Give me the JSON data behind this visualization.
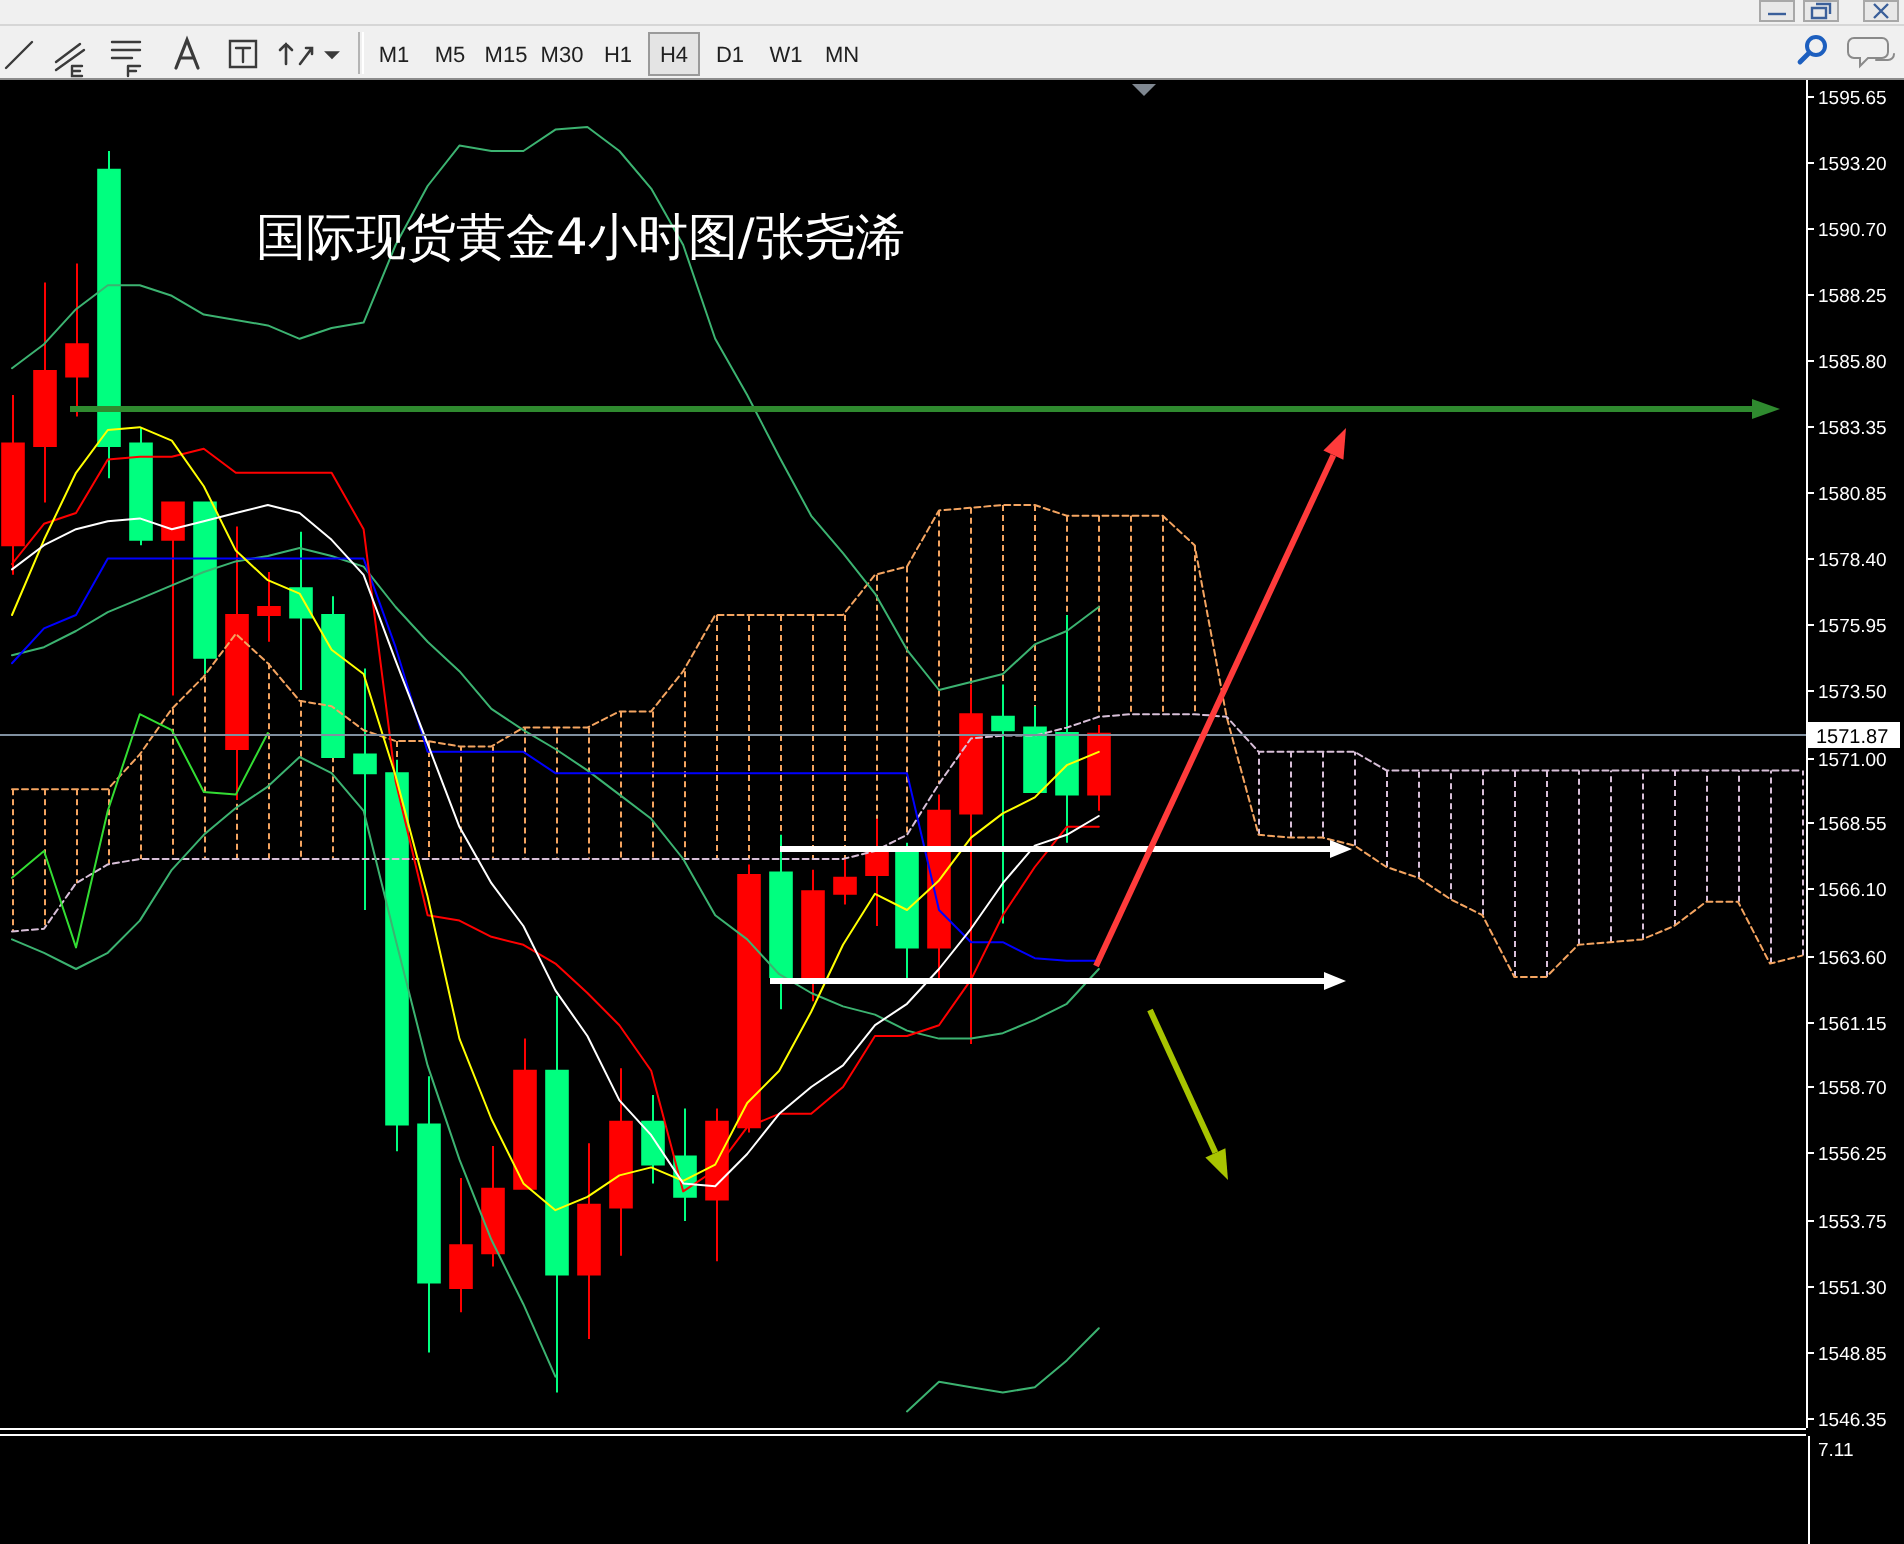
{
  "chart_data": [
    {
      "type": "candlestick",
      "title": "国际现货黄金4小时图/张尧浠",
      "categories": [
        null,
        null,
        null,
        null,
        null,
        null,
        null,
        null,
        null,
        null,
        null,
        null,
        null,
        null,
        null,
        null,
        null,
        null,
        null,
        null,
        null,
        null,
        null,
        null,
        null,
        null,
        null,
        null,
        null,
        null,
        null,
        null,
        null,
        null,
        null,
        null,
        null,
        null,
        null,
        null,
        null,
        null,
        null,
        null,
        null,
        null,
        null,
        null,
        null,
        null,
        null,
        null,
        null,
        null,
        null,
        null,
        null
      ],
      "ohlc": [
        [
          1578.9,
          1584.5,
          1577.8,
          1582.7
        ],
        [
          1582.6,
          1588.7,
          1580.5,
          1585.4
        ],
        [
          1585.2,
          1589.4,
          1583.7,
          1586.4
        ],
        [
          1592.9,
          1593.6,
          1581.4,
          1582.6
        ],
        [
          1582.7,
          1583.3,
          1578.9,
          1579.1
        ],
        [
          1579.1,
          1580.5,
          1573.3,
          1580.5
        ],
        [
          1580.5,
          1580.5,
          1574.1,
          1574.7
        ],
        [
          1571.3,
          1579.6,
          1569.4,
          1576.3
        ],
        [
          1576.3,
          1577.9,
          1575.3,
          1576.6
        ],
        [
          1577.3,
          1579.4,
          1573.5,
          1576.2
        ],
        [
          1576.3,
          1577.0,
          1571.0,
          1571.0
        ],
        [
          1571.1,
          1574.3,
          1565.3,
          1570.4
        ],
        [
          1570.4,
          1570.9,
          1556.3,
          1557.3
        ],
        [
          1557.3,
          1559.1,
          1548.8,
          1551.4
        ],
        [
          1551.2,
          1555.3,
          1550.3,
          1552.8
        ],
        [
          1552.5,
          1556.5,
          1552.0,
          1554.9
        ],
        [
          1554.9,
          1560.5,
          1554.9,
          1559.3
        ],
        [
          1559.3,
          1562.1,
          1547.3,
          1551.7
        ],
        [
          1551.7,
          1556.6,
          1549.3,
          1554.3
        ],
        [
          1554.2,
          1559.4,
          1552.4,
          1557.4
        ],
        [
          1557.4,
          1558.4,
          1555.1,
          1555.8
        ],
        [
          1556.1,
          1557.9,
          1553.7,
          1554.6
        ],
        [
          1554.5,
          1557.9,
          1552.2,
          1557.4
        ],
        [
          1557.2,
          1567.0,
          1557.0,
          1566.6
        ],
        [
          1566.7,
          1568.1,
          1561.6,
          1562.8
        ],
        [
          1562.7,
          1566.8,
          1561.9,
          1566.0
        ],
        [
          1565.9,
          1567.2,
          1565.5,
          1566.5
        ],
        [
          1566.6,
          1568.7,
          1564.7,
          1567.5
        ],
        [
          1567.5,
          1567.8,
          1562.6,
          1563.9
        ],
        [
          1563.9,
          1569.6,
          1562.7,
          1569.0
        ],
        [
          1568.9,
          1573.7,
          1560.3,
          1572.6
        ],
        [
          1572.5,
          1573.7,
          1564.8,
          1572.0
        ],
        [
          1572.1,
          1572.9,
          1569.7,
          1569.7
        ],
        [
          1571.9,
          1576.3,
          1567.8,
          1569.6
        ],
        [
          1569.6,
          1572.2,
          1569.0,
          1571.87
        ],
        null,
        null,
        null,
        null,
        null,
        null,
        null,
        null,
        null,
        null,
        null,
        null,
        null,
        null,
        null,
        null,
        null,
        null,
        null,
        null,
        null,
        null
      ],
      "colors": [
        "#ff0000",
        "#ff0000",
        "#ff0000",
        "#00ff7f",
        "#00ff7f",
        "#ff0000",
        "#00ff7f",
        "#ff0000",
        "#ff0000",
        "#00ff7f",
        "#00ff7f",
        "#00ff7f",
        "#00ff7f",
        "#00ff7f",
        "#ff0000",
        "#ff0000",
        "#ff0000",
        "#00ff7f",
        "#ff0000",
        "#ff0000",
        "#00ff7f",
        "#00ff7f",
        "#ff0000",
        "#ff0000",
        "#00ff7f",
        "#ff0000",
        "#ff0000",
        "#ff0000",
        "#00ff7f",
        "#ff0000",
        "#ff0000",
        "#00ff7f",
        "#00ff7f",
        "#00ff7f",
        "#ff0000",
        null,
        null,
        null,
        null,
        null,
        null,
        null,
        null,
        null,
        null,
        null,
        null,
        null,
        null,
        null,
        null,
        null,
        null,
        null,
        null,
        null,
        null
      ],
      "series": [
        {
          "type": "line",
          "color": "#f4a460",
          "line_style": "dashed",
          "values": [
            1569.8,
            1569.8,
            1569.8,
            1569.8,
            1571.1,
            1572.8,
            1574.0,
            1575.6,
            1574.5,
            1573.1,
            1572.9,
            1572.0,
            1571.6,
            1571.6,
            1571.4,
            1571.4,
            1572.1,
            1572.1,
            1572.1,
            1572.7,
            1572.7,
            1574.2,
            1576.3,
            1576.3,
            1576.3,
            1576.3,
            1576.3,
            1577.8,
            1578.1,
            1580.2,
            1580.3,
            1580.4,
            1580.4,
            1580.0,
            1580.0,
            1580.0,
            1580.0,
            1578.9,
            1572.5,
            1568.1,
            1568.0,
            1568.0,
            1567.7,
            1566.9,
            1566.5,
            1565.7,
            1565.1,
            1562.8,
            1562.8,
            1564.0,
            1564.1,
            1564.2,
            1564.7,
            1565.6,
            1565.6,
            1563.3,
            1563.6
          ]
        },
        {
          "type": "line",
          "color": "#d8bfd8",
          "line_style": "dashed",
          "values": [
            1564.5,
            1564.6,
            1566.3,
            1567.0,
            1567.2,
            1567.2,
            1567.2,
            1567.2,
            1567.2,
            1567.2,
            1567.2,
            1567.2,
            1567.2,
            1567.2,
            1567.2,
            1567.2,
            1567.2,
            1567.2,
            1567.2,
            1567.2,
            1567.2,
            1567.2,
            1567.2,
            1567.2,
            1567.2,
            1567.2,
            1567.2,
            1567.5,
            1568.1,
            1570.0,
            1571.7,
            1571.8,
            1571.8,
            1572.1,
            1572.5,
            1572.6,
            1572.6,
            1572.6,
            1572.5,
            1571.2,
            1571.2,
            1571.2,
            1571.2,
            1570.5,
            1570.5,
            1570.5,
            1570.5,
            1570.5,
            1570.5,
            1570.5,
            1570.5,
            1570.5,
            1570.5,
            1570.5,
            1570.5,
            1570.5,
            1570.5
          ]
        },
        {
          "type": "line",
          "color": "#3cb371",
          "values": [
            1585.5,
            1586.4,
            1587.7,
            1588.6,
            1588.6,
            1588.2,
            1587.5,
            1587.3,
            1587.1,
            1586.6,
            1587.0,
            1587.2,
            1590.1,
            1592.3,
            1593.8,
            1593.6,
            1593.6,
            1594.4,
            1594.5,
            1593.6,
            1592.2,
            1590.1,
            1586.6,
            1584.5,
            1582.2,
            1580.0,
            1578.6,
            1577.1,
            1575.0,
            1573.5,
            1573.8,
            1574.1,
            1575.2,
            1575.7,
            1576.6,
            null,
            null,
            null,
            null,
            null,
            null,
            null,
            null,
            null,
            null,
            null,
            null,
            null,
            null,
            null,
            null,
            null,
            null,
            null,
            null,
            null,
            null
          ]
        },
        {
          "type": "line",
          "color": "#3cb371",
          "values": [
            1574.8,
            1575.1,
            1575.7,
            1576.4,
            1576.9,
            1577.4,
            1577.9,
            1578.3,
            1578.5,
            1578.8,
            1578.5,
            1578.1,
            1576.6,
            1575.3,
            1574.2,
            1572.8,
            1572.0,
            1571.3,
            1570.5,
            1569.6,
            1568.7,
            1567.2,
            1565.1,
            1564.2,
            1562.9,
            1562.2,
            1561.7,
            1561.4,
            1560.8,
            1560.5,
            1560.5,
            1560.7,
            1561.2,
            1561.8,
            1563.1,
            null,
            null,
            null,
            null,
            null,
            null,
            null,
            null,
            null,
            null,
            null,
            null,
            null,
            null,
            null,
            null,
            null,
            null,
            null,
            null,
            null,
            null
          ]
        },
        {
          "type": "line",
          "color": "#3cb371",
          "values": [
            1564.2,
            1563.7,
            1563.1,
            1563.7,
            1564.9,
            1566.8,
            1568.1,
            1569.1,
            1569.9,
            1571.0,
            1570.4,
            1569.0,
            1564.2,
            1559.5,
            1556.0,
            1553.0,
            1550.6,
            1547.9,
            null,
            null,
            null,
            null,
            null,
            null,
            null,
            null,
            null,
            null,
            1546.6,
            1547.7,
            1547.5,
            1547.3,
            1547.5,
            1548.5,
            1549.7,
            null,
            null,
            null,
            null,
            null,
            null,
            null,
            null,
            null,
            null,
            null,
            null,
            null,
            null,
            null,
            null,
            null,
            null,
            null,
            null,
            null,
            null
          ]
        },
        {
          "type": "line",
          "color": "#0000ff",
          "values": [
            1574.5,
            1575.8,
            1576.3,
            1578.4,
            1578.4,
            1578.4,
            1578.4,
            1578.4,
            1578.4,
            1578.4,
            1578.4,
            1578.4,
            1575.1,
            1571.2,
            1571.2,
            1571.2,
            1571.2,
            1570.4,
            1570.4,
            1570.4,
            1570.4,
            1570.4,
            1570.4,
            1570.4,
            1570.4,
            1570.4,
            1570.4,
            1570.4,
            1570.4,
            1565.3,
            1564.1,
            1564.1,
            1563.5,
            1563.4,
            1563.4,
            null,
            null,
            null,
            null,
            null,
            null,
            null,
            null,
            null,
            null,
            null,
            null,
            null,
            null,
            null,
            null,
            null,
            null,
            null,
            null,
            null,
            null
          ]
        },
        {
          "type": "line",
          "color": "#ff0000",
          "values": [
            1578.2,
            1579.7,
            1580.1,
            1582.1,
            1582.2,
            1582.2,
            1582.5,
            1581.6,
            1581.6,
            1581.6,
            1581.6,
            1579.5,
            1570.1,
            1565.1,
            1564.9,
            1564.3,
            1564.0,
            1563.3,
            1562.2,
            1561.0,
            1559.3,
            1554.8,
            1555.6,
            1557.2,
            1557.7,
            1557.7,
            1558.7,
            1560.6,
            1560.6,
            1561.0,
            1562.7,
            1565.1,
            1566.9,
            1568.4,
            1568.4,
            null,
            null,
            null,
            null,
            null,
            null,
            null,
            null,
            null,
            null,
            null,
            null,
            null,
            null,
            null,
            null,
            null,
            null,
            null,
            null,
            null,
            null
          ]
        },
        {
          "type": "line",
          "color": "#ffff00",
          "values": [
            1576.3,
            1579.1,
            1581.6,
            1583.2,
            1583.3,
            1582.8,
            1581.1,
            1578.7,
            1577.6,
            1577.1,
            1575.0,
            1574.1,
            1570.3,
            1565.8,
            1560.5,
            1557.5,
            1555.1,
            1554.1,
            1554.6,
            1555.4,
            1555.7,
            1555.2,
            1555.8,
            1558.1,
            1559.3,
            1561.5,
            1564.0,
            1565.9,
            1565.3,
            1566.4,
            1568.0,
            1568.9,
            1569.5,
            1570.7,
            1571.2,
            null,
            null,
            null,
            null,
            null,
            null,
            null,
            null,
            null,
            null,
            null,
            null,
            null,
            null,
            null,
            null,
            null,
            null,
            null,
            null,
            null,
            null
          ]
        },
        {
          "type": "line",
          "color": "#ffffff",
          "values": [
            1578.0,
            1578.9,
            1579.5,
            1579.8,
            1579.9,
            1579.5,
            1579.8,
            1580.1,
            1580.4,
            1580.1,
            1579.1,
            1577.8,
            1574.6,
            1571.5,
            1568.4,
            1566.3,
            1564.7,
            1562.3,
            1560.6,
            1558.2,
            1556.9,
            1555.1,
            1555.0,
            1556.2,
            1557.7,
            1558.7,
            1559.5,
            1561.0,
            1561.8,
            1563.1,
            1564.6,
            1566.3,
            1567.7,
            1568.1,
            1568.8,
            null,
            null,
            null,
            null,
            null,
            null,
            null,
            null,
            null,
            null,
            null,
            null,
            null,
            null,
            null,
            null,
            null,
            null,
            null,
            null,
            null,
            null
          ]
        },
        {
          "type": "line",
          "color": "#33dd33",
          "values": [
            1566.5,
            1567.5,
            1563.9,
            1569.0,
            1572.6,
            1572.0,
            1569.7,
            1569.6,
            1571.9,
            null,
            null,
            null,
            null,
            null,
            null,
            null,
            null,
            null,
            null,
            null,
            null,
            null,
            null,
            null,
            null,
            null,
            null,
            null,
            null,
            null,
            null,
            null,
            null,
            null,
            null,
            null,
            null,
            null,
            null,
            null,
            null,
            null,
            null,
            null,
            null,
            null,
            null,
            null,
            null,
            null,
            null,
            null,
            null,
            null,
            null,
            null,
            null
          ]
        }
      ],
      "ylim": [
        1545.98,
        1596.25
      ],
      "yticks": [
        1595.65,
        {
          "value": 1593.2,
          "label": "1593.20"
        },
        {
          "value": 1590.7,
          "label": "1590.70"
        },
        1588.25,
        {
          "value": 1585.8,
          "label": "1585.80"
        },
        1583.35,
        1580.85,
        {
          "value": 1578.4,
          "label": "1578.40"
        },
        1575.95,
        {
          "value": 1573.5,
          "label": "1573.50"
        },
        {
          "value": 1571,
          "label": "1571.00"
        },
        1568.55,
        {
          "value": 1566.1,
          "label": "1566.10"
        },
        {
          "value": 1563.6,
          "label": "1563.60"
        },
        1561.15,
        {
          "value": 1558.7,
          "label": "1558.70"
        },
        1556.25,
        1553.75,
        {
          "value": 1551.3,
          "label": "1551.30"
        },
        1548.85,
        1546.35
      ],
      "tick_labels": "y",
      "ref_lines": [
        {
          "axis": "y",
          "value": 1571.87,
          "label": "1571.87",
          "color": "#8090a0"
        },
        {
          "axis": "y",
          "value": 1584.0,
          "color": "#2f8a2f"
        }
      ],
      "annotations": [
        "M1",
        "M5",
        "M15",
        "M30",
        "H1",
        "H4",
        "D1",
        "W1",
        "MN"
      ]
    },
    {
      "type": "other",
      "annotations": [
        "7.11"
      ]
    }
  ]
}
